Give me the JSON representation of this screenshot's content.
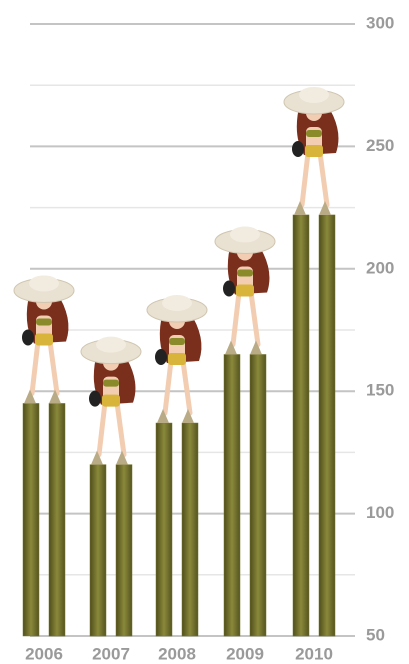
{
  "chart_data": {
    "type": "bar",
    "categories": [
      "2006",
      "2007",
      "2008",
      "2009",
      "2010"
    ],
    "values": [
      145,
      120,
      137,
      165,
      222
    ],
    "color": "#76752f",
    "ylim": [
      50,
      300
    ],
    "yticks": [
      50,
      100,
      150,
      200,
      250,
      300
    ],
    "minor_yticks": [
      75,
      125,
      175,
      225,
      275
    ],
    "grid": true
  }
}
